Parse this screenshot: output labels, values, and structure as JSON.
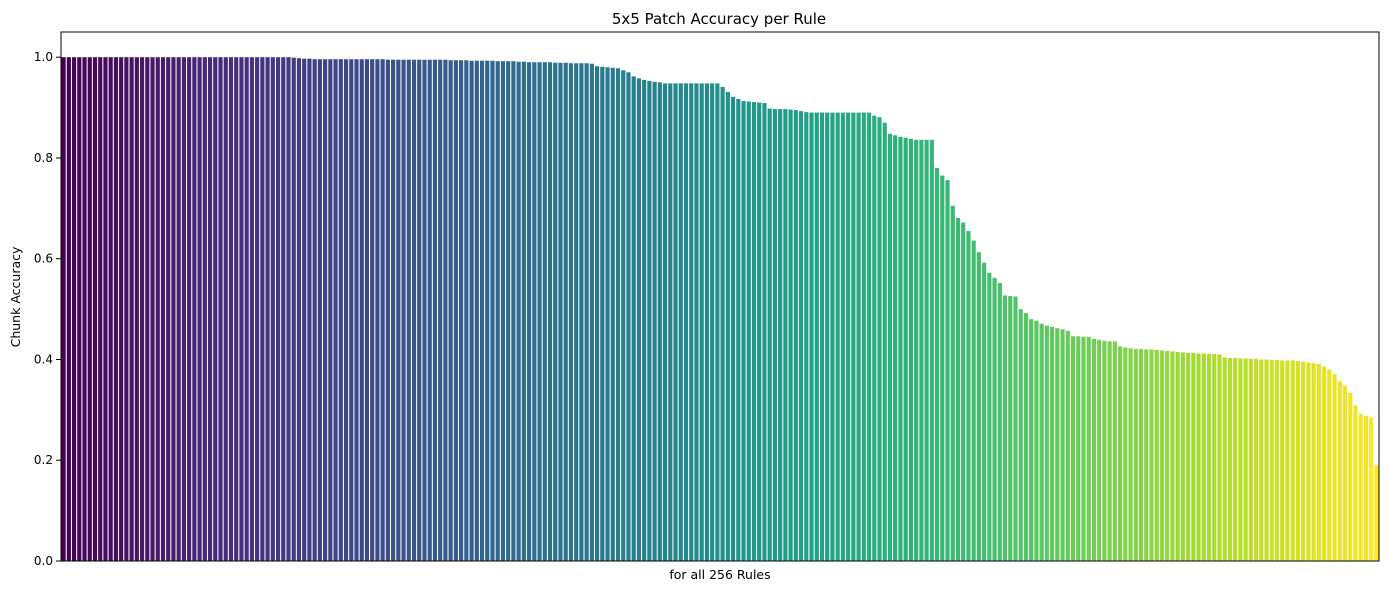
{
  "chart_data": {
    "type": "bar",
    "title": "5x5 Patch Accuracy per Rule",
    "xlabel": "for all 256 Rules",
    "ylabel": "Chunk Accuracy",
    "ylim": [
      0,
      1.05
    ],
    "yticks": [
      "0.0",
      "0.2",
      "0.4",
      "0.6",
      "0.8",
      "1.0"
    ],
    "x_tick_labels_visible": false,
    "grid": false,
    "legend": "none",
    "colormap": "viridis",
    "color_start": "#440154",
    "color_end": "#fde725",
    "anchors": [
      [
        0,
        1.0
      ],
      [
        43,
        1.0
      ],
      [
        46,
        0.997
      ],
      [
        50,
        0.996
      ],
      [
        73,
        0.995
      ],
      [
        75,
        0.994
      ],
      [
        80,
        0.993
      ],
      [
        85,
        0.992
      ],
      [
        87,
        0.991
      ],
      [
        91,
        0.99
      ],
      [
        95,
        0.989
      ],
      [
        99,
        0.988
      ],
      [
        101,
        0.987
      ],
      [
        102,
        0.982
      ],
      [
        104,
        0.98
      ],
      [
        106,
        0.978
      ],
      [
        108,
        0.97
      ],
      [
        109,
        0.962
      ],
      [
        111,
        0.955
      ],
      [
        113,
        0.951
      ],
      [
        115,
        0.948
      ],
      [
        125,
        0.948
      ],
      [
        126,
        0.941
      ],
      [
        127,
        0.931
      ],
      [
        128,
        0.921
      ],
      [
        130,
        0.913
      ],
      [
        134,
        0.909
      ],
      [
        135,
        0.898
      ],
      [
        139,
        0.896
      ],
      [
        141,
        0.893
      ],
      [
        143,
        0.89
      ],
      [
        154,
        0.89
      ],
      [
        155,
        0.884
      ],
      [
        156,
        0.881
      ],
      [
        157,
        0.87
      ],
      [
        158,
        0.848
      ],
      [
        160,
        0.842
      ],
      [
        162,
        0.838
      ],
      [
        163,
        0.836
      ],
      [
        166,
        0.836
      ],
      [
        167,
        0.78
      ],
      [
        168,
        0.765
      ],
      [
        169,
        0.756
      ],
      [
        170,
        0.705
      ],
      [
        171,
        0.681
      ],
      [
        172,
        0.672
      ],
      [
        173,
        0.655
      ],
      [
        174,
        0.636
      ],
      [
        175,
        0.613
      ],
      [
        176,
        0.592
      ],
      [
        177,
        0.572
      ],
      [
        178,
        0.562
      ],
      [
        179,
        0.552
      ],
      [
        180,
        0.527
      ],
      [
        182,
        0.525
      ],
      [
        183,
        0.5
      ],
      [
        184,
        0.492
      ],
      [
        185,
        0.48
      ],
      [
        186,
        0.477
      ],
      [
        187,
        0.471
      ],
      [
        188,
        0.467
      ],
      [
        190,
        0.462
      ],
      [
        192,
        0.457
      ],
      [
        193,
        0.446
      ],
      [
        196,
        0.445
      ],
      [
        197,
        0.441
      ],
      [
        199,
        0.437
      ],
      [
        201,
        0.436
      ],
      [
        202,
        0.426
      ],
      [
        204,
        0.422
      ],
      [
        208,
        0.42
      ],
      [
        210,
        0.418
      ],
      [
        214,
        0.414
      ],
      [
        218,
        0.412
      ],
      [
        221,
        0.41
      ],
      [
        222,
        0.404
      ],
      [
        225,
        0.402
      ],
      [
        229,
        0.4
      ],
      [
        234,
        0.398
      ],
      [
        236,
        0.397
      ],
      [
        238,
        0.394
      ],
      [
        240,
        0.391
      ],
      [
        241,
        0.386
      ],
      [
        242,
        0.38
      ],
      [
        243,
        0.371
      ],
      [
        244,
        0.357
      ],
      [
        245,
        0.348
      ],
      [
        246,
        0.334
      ],
      [
        247,
        0.309
      ],
      [
        248,
        0.292
      ],
      [
        249,
        0.288
      ],
      [
        250,
        0.285
      ],
      [
        251,
        0.19
      ]
    ]
  }
}
